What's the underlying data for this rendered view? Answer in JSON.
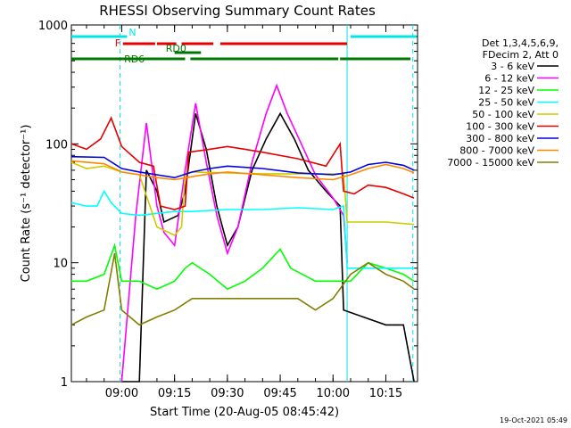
{
  "chart_data": {
    "type": "line",
    "title": "RHESSI Observing Summary Count Rates",
    "xlabel": "Start Time (20-Aug-05 08:45:42)",
    "ylabel": "Count Rate (s⁻¹ detector⁻¹)",
    "yscale": "log",
    "ylim": [
      1,
      1000
    ],
    "xlim": [
      "08:45:42",
      "10:24:00"
    ],
    "x_ticks": [
      "09:00",
      "09:15",
      "09:30",
      "09:45",
      "10:00",
      "10:15"
    ],
    "y_ticks": [
      "1",
      "10",
      "100",
      "1000"
    ],
    "legend_header": [
      "Det 1,3,4,5,6,9,",
      "FDecim 2, Att 0"
    ],
    "legend_position": "right",
    "timestamp": "19-Oct-2021 05:49",
    "vertical_markers": [
      {
        "time": "08:59:30",
        "color": "#00e5e5",
        "style": "dashed"
      },
      {
        "time": "10:04:00",
        "color": "#00e5e5",
        "style": "solid"
      },
      {
        "time": "10:22:40",
        "color": "#00e5e5",
        "style": "dashed"
      }
    ],
    "flag_bars": [
      {
        "label": "N",
        "color": "#00e5e5",
        "row": 1,
        "segments": [
          [
            "08:45:42",
            "09:01:30"
          ],
          [
            "10:05:00",
            "10:23:40"
          ]
        ]
      },
      {
        "label": "F",
        "color": "#e60000",
        "row": 2,
        "segments": [
          [
            "09:00:20",
            "09:09:30"
          ],
          [
            "09:10:00",
            "09:15:30"
          ],
          [
            "09:17:00",
            "09:26:00"
          ],
          [
            "09:28:00",
            "10:04:00"
          ]
        ]
      },
      {
        "label": "RD0",
        "color": "#007700",
        "row": 3,
        "segments": [
          [
            "09:15:00",
            "09:22:30"
          ]
        ]
      },
      {
        "label": "RD6",
        "color": "#007700",
        "row": 4,
        "segments": [
          [
            "08:45:42",
            "09:18:00"
          ],
          [
            "09:19:30",
            "10:01:30"
          ],
          [
            "10:02:00",
            "10:22:00"
          ]
        ]
      }
    ],
    "series": [
      {
        "name": "3 - 6 keV",
        "color": "#000000",
        "points": [
          [
            "09:00",
            1
          ],
          [
            "09:05",
            1
          ],
          [
            "09:07",
            60
          ],
          [
            "09:10",
            40
          ],
          [
            "09:12",
            22
          ],
          [
            "09:16",
            25
          ],
          [
            "09:18",
            40
          ],
          [
            "09:21",
            180
          ],
          [
            "09:24",
            90
          ],
          [
            "09:27",
            30
          ],
          [
            "09:30",
            14
          ],
          [
            "09:33",
            20
          ],
          [
            "09:37",
            60
          ],
          [
            "09:41",
            110
          ],
          [
            "09:45",
            180
          ],
          [
            "09:49",
            110
          ],
          [
            "09:53",
            60
          ],
          [
            "09:58",
            40
          ],
          [
            "10:02",
            30
          ],
          [
            "10:03",
            4
          ],
          [
            "10:15",
            3
          ],
          [
            "10:20",
            3
          ],
          [
            "10:23",
            1
          ]
        ]
      },
      {
        "name": "6 - 12 keV",
        "color": "#ff00ff",
        "points": [
          [
            "09:00",
            1
          ],
          [
            "09:04",
            25
          ],
          [
            "09:07",
            150
          ],
          [
            "09:10",
            30
          ],
          [
            "09:12",
            18
          ],
          [
            "09:15",
            14
          ],
          [
            "09:18",
            60
          ],
          [
            "09:21",
            220
          ],
          [
            "09:24",
            70
          ],
          [
            "09:27",
            25
          ],
          [
            "09:30",
            12
          ],
          [
            "09:33",
            20
          ],
          [
            "09:37",
            70
          ],
          [
            "09:41",
            180
          ],
          [
            "09:44",
            310
          ],
          [
            "09:47",
            180
          ],
          [
            "09:51",
            100
          ],
          [
            "09:55",
            55
          ],
          [
            "10:00",
            35
          ],
          [
            "10:03",
            25
          ],
          [
            "10:04",
            10
          ]
        ]
      },
      {
        "name": "12 - 25 keV",
        "color": "#00ff00",
        "points": [
          [
            "08:45:42",
            7
          ],
          [
            "08:50",
            7
          ],
          [
            "08:55",
            8
          ],
          [
            "08:58",
            14
          ],
          [
            "09:00",
            7
          ],
          [
            "09:05",
            7
          ],
          [
            "09:10",
            6
          ],
          [
            "09:15",
            7
          ],
          [
            "09:18",
            9
          ],
          [
            "09:20",
            10
          ],
          [
            "09:25",
            8
          ],
          [
            "09:30",
            6
          ],
          [
            "09:35",
            7
          ],
          [
            "09:40",
            9
          ],
          [
            "09:45",
            13
          ],
          [
            "09:48",
            9
          ],
          [
            "09:55",
            7
          ],
          [
            "10:00",
            7
          ],
          [
            "10:05",
            7
          ],
          [
            "10:10",
            10
          ],
          [
            "10:15",
            9
          ],
          [
            "10:20",
            8
          ],
          [
            "10:23",
            7
          ]
        ]
      },
      {
        "name": "25 - 50 keV",
        "color": "#00ffff",
        "points": [
          [
            "08:45:42",
            32
          ],
          [
            "08:50",
            30
          ],
          [
            "08:53",
            30
          ],
          [
            "08:55",
            40
          ],
          [
            "08:57",
            32
          ],
          [
            "09:00",
            26
          ],
          [
            "09:05",
            25
          ],
          [
            "09:10",
            26
          ],
          [
            "09:15",
            27
          ],
          [
            "09:20",
            27
          ],
          [
            "09:30",
            28
          ],
          [
            "09:40",
            28
          ],
          [
            "09:50",
            29
          ],
          [
            "10:00",
            28
          ],
          [
            "10:03",
            30
          ],
          [
            "10:04",
            9
          ],
          [
            "10:10",
            9
          ],
          [
            "10:15",
            9
          ],
          [
            "10:23",
            9
          ]
        ]
      },
      {
        "name": "50 - 100 keV",
        "color": "#cccc00",
        "points": [
          [
            "08:45:42",
            70
          ],
          [
            "08:50",
            62
          ],
          [
            "08:55",
            65
          ],
          [
            "09:00",
            58
          ],
          [
            "09:05",
            55
          ],
          [
            "09:10",
            20
          ],
          [
            "09:15",
            17
          ],
          [
            "09:17",
            20
          ],
          [
            "09:18",
            55
          ],
          [
            "09:20",
            58
          ],
          [
            "09:30",
            57
          ],
          [
            "09:40",
            56
          ],
          [
            "09:50",
            56
          ],
          [
            "10:00",
            56
          ],
          [
            "10:03",
            56
          ],
          [
            "10:04",
            22
          ],
          [
            "10:10",
            22
          ],
          [
            "10:15",
            22
          ],
          [
            "10:23",
            21
          ]
        ]
      },
      {
        "name": "100 - 300 keV",
        "color": "#e60000",
        "points": [
          [
            "08:45:42",
            100
          ],
          [
            "08:50",
            90
          ],
          [
            "08:54",
            110
          ],
          [
            "08:57",
            165
          ],
          [
            "09:00",
            95
          ],
          [
            "09:05",
            70
          ],
          [
            "09:09",
            65
          ],
          [
            "09:11",
            30
          ],
          [
            "09:15",
            28
          ],
          [
            "09:18",
            30
          ],
          [
            "09:19",
            85
          ],
          [
            "09:25",
            90
          ],
          [
            "09:30",
            95
          ],
          [
            "09:35",
            90
          ],
          [
            "09:40",
            85
          ],
          [
            "09:50",
            75
          ],
          [
            "09:58",
            65
          ],
          [
            "10:02",
            100
          ],
          [
            "10:03",
            40
          ],
          [
            "10:06",
            38
          ],
          [
            "10:10",
            45
          ],
          [
            "10:15",
            43
          ],
          [
            "10:20",
            38
          ],
          [
            "10:23",
            35
          ]
        ]
      },
      {
        "name": "300 - 800 keV",
        "color": "#0000e6",
        "points": [
          [
            "08:45:42",
            78
          ],
          [
            "08:55",
            77
          ],
          [
            "09:00",
            62
          ],
          [
            "09:05",
            58
          ],
          [
            "09:10",
            55
          ],
          [
            "09:15",
            52
          ],
          [
            "09:20",
            58
          ],
          [
            "09:25",
            62
          ],
          [
            "09:30",
            65
          ],
          [
            "09:40",
            62
          ],
          [
            "09:50",
            57
          ],
          [
            "10:00",
            55
          ],
          [
            "10:05",
            58
          ],
          [
            "10:10",
            67
          ],
          [
            "10:15",
            70
          ],
          [
            "10:20",
            66
          ],
          [
            "10:23",
            60
          ]
        ]
      },
      {
        "name": "800 - 7000 keV",
        "color": "#ff8800",
        "points": [
          [
            "08:45:42",
            72
          ],
          [
            "08:55",
            68
          ],
          [
            "09:00",
            58
          ],
          [
            "09:05",
            55
          ],
          [
            "09:10",
            52
          ],
          [
            "09:15",
            50
          ],
          [
            "09:20",
            53
          ],
          [
            "09:25",
            56
          ],
          [
            "09:30",
            58
          ],
          [
            "09:40",
            55
          ],
          [
            "09:50",
            52
          ],
          [
            "10:00",
            50
          ],
          [
            "10:05",
            55
          ],
          [
            "10:10",
            62
          ],
          [
            "10:15",
            67
          ],
          [
            "10:20",
            62
          ],
          [
            "10:23",
            57
          ]
        ]
      },
      {
        "name": "7000 - 15000 keV",
        "color": "#808000",
        "points": [
          [
            "08:45:42",
            3
          ],
          [
            "08:50",
            3.5
          ],
          [
            "08:55",
            4
          ],
          [
            "08:58",
            12
          ],
          [
            "09:00",
            4
          ],
          [
            "09:05",
            3
          ],
          [
            "09:10",
            3.5
          ],
          [
            "09:15",
            4
          ],
          [
            "09:20",
            5
          ],
          [
            "09:30",
            5
          ],
          [
            "09:40",
            5
          ],
          [
            "09:50",
            5
          ],
          [
            "09:55",
            4
          ],
          [
            "10:00",
            5
          ],
          [
            "10:05",
            8
          ],
          [
            "10:10",
            10
          ],
          [
            "10:15",
            8
          ],
          [
            "10:20",
            7
          ],
          [
            "10:23",
            6
          ]
        ]
      }
    ]
  }
}
